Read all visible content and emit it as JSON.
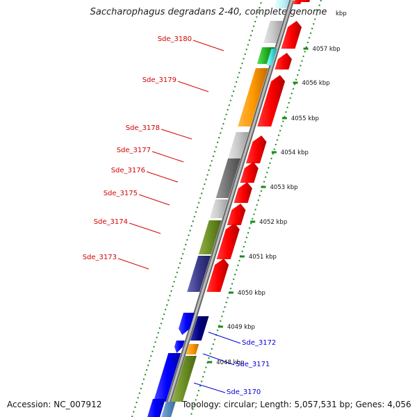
{
  "title": "Saccharophagus degradans 2-40, complete genome",
  "footer": {
    "accession": "Accession: NC_007912",
    "summary": "Topology: circular; Length: 5,057,531 bp; Genes: 4,056"
  },
  "ticks": [
    {
      "label": "4057 kbp"
    },
    {
      "label": "4056 kbp"
    },
    {
      "label": "4055 kbp"
    },
    {
      "label": "4054 kbp"
    },
    {
      "label": "4053 kbp"
    },
    {
      "label": "4052 kbp"
    },
    {
      "label": "4051 kbp"
    },
    {
      "label": "4050 kbp"
    },
    {
      "label": "4049 kbp"
    },
    {
      "label": "4048 kbp"
    }
  ],
  "gene_labels": [
    {
      "text": "Sde_3180",
      "color": "#d40000"
    },
    {
      "text": "Sde_3179",
      "color": "#d40000"
    },
    {
      "text": "Sde_3178",
      "color": "#d40000"
    },
    {
      "text": "Sde_3177",
      "color": "#d40000"
    },
    {
      "text": "Sde_3176",
      "color": "#d40000"
    },
    {
      "text": "Sde_3175",
      "color": "#d40000"
    },
    {
      "text": "Sde_3174",
      "color": "#d40000"
    },
    {
      "text": "Sde_3173",
      "color": "#d40000"
    },
    {
      "text": "Sde_3172",
      "color": "#0000d4"
    },
    {
      "text": "Sde_3171",
      "color": "#0000d4"
    },
    {
      "text": "Sde_3170",
      "color": "#0000d4"
    }
  ],
  "colors": {
    "backbone": "#9a9a9a",
    "tick_mark": "#1a8a1a",
    "cds_strand": "#ff0000",
    "reverse_cds": "#0000ff",
    "orange": "#ff9900",
    "olive": "#6b8e23",
    "navy": "#3a3a8a",
    "gray_light": "#c8c8c8",
    "gray_dark": "#707070"
  }
}
